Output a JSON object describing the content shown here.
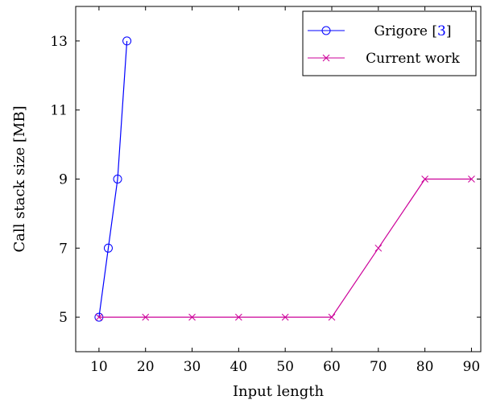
{
  "chart_data": {
    "type": "line",
    "xlabel": "Input length",
    "ylabel": "Call stack size [MB]",
    "xlim": [
      5,
      92
    ],
    "ylim": [
      4,
      14
    ],
    "xticks": [
      10,
      20,
      30,
      40,
      50,
      60,
      70,
      80,
      90
    ],
    "yticks": [
      5,
      7,
      9,
      11,
      13
    ],
    "grid": false,
    "legend_position": "top-right",
    "series": [
      {
        "name": "Grigore [3]",
        "name_text": "Grigore [",
        "name_ref": "3",
        "name_suffix": "]",
        "color": "#0000ff",
        "ref_color": "#0000ff",
        "marker": "circle",
        "x": [
          10,
          12,
          14,
          16
        ],
        "y": [
          5,
          7,
          9,
          13
        ]
      },
      {
        "name": "Current work",
        "color": "#cc0099",
        "marker": "x",
        "x": [
          10,
          20,
          30,
          40,
          50,
          60,
          70,
          80,
          90
        ],
        "y": [
          5,
          5,
          5,
          5,
          5,
          5,
          7,
          9,
          9
        ]
      }
    ]
  }
}
